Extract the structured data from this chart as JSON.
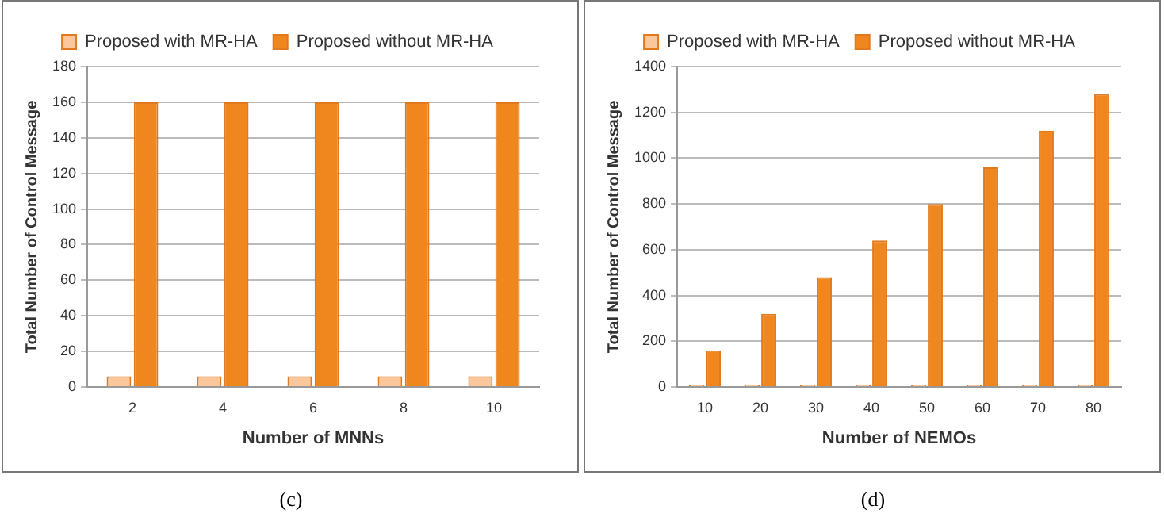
{
  "chart_data": [
    {
      "type": "bar",
      "xlabel": "Number of MNNs",
      "ylabel": "Total Number of Control Message",
      "categories": [
        "2",
        "4",
        "6",
        "8",
        "10"
      ],
      "series": [
        {
          "name": "Proposed with MR-HA",
          "color": "#fbc79b",
          "values": [
            6,
            6,
            6,
            6,
            6
          ]
        },
        {
          "name": "Proposed without MR-HA",
          "color": "#f0861e",
          "values": [
            160,
            160,
            160,
            160,
            160
          ]
        }
      ],
      "ylim": [
        0,
        180
      ],
      "yticks": [
        0,
        20,
        40,
        60,
        80,
        100,
        120,
        140,
        160,
        180
      ],
      "grid": "y",
      "legend": "top",
      "annotations": [
        "(c)"
      ]
    },
    {
      "type": "bar",
      "xlabel": "Number of NEMOs",
      "ylabel": "Total Number of Control Message",
      "categories": [
        "10",
        "20",
        "30",
        "40",
        "50",
        "60",
        "70",
        "80"
      ],
      "series": [
        {
          "name": "Proposed with MR-HA",
          "color": "#fbc79b",
          "values": [
            10,
            10,
            10,
            10,
            10,
            10,
            10,
            10
          ]
        },
        {
          "name": "Proposed without MR-HA",
          "color": "#f0861e",
          "values": [
            160,
            320,
            480,
            640,
            800,
            960,
            1120,
            1280
          ]
        }
      ],
      "ylim": [
        0,
        1400
      ],
      "yticks": [
        0,
        200,
        400,
        600,
        800,
        1000,
        1200,
        1400
      ],
      "grid": "y",
      "legend": "top",
      "annotations": [
        "(d)"
      ]
    }
  ]
}
